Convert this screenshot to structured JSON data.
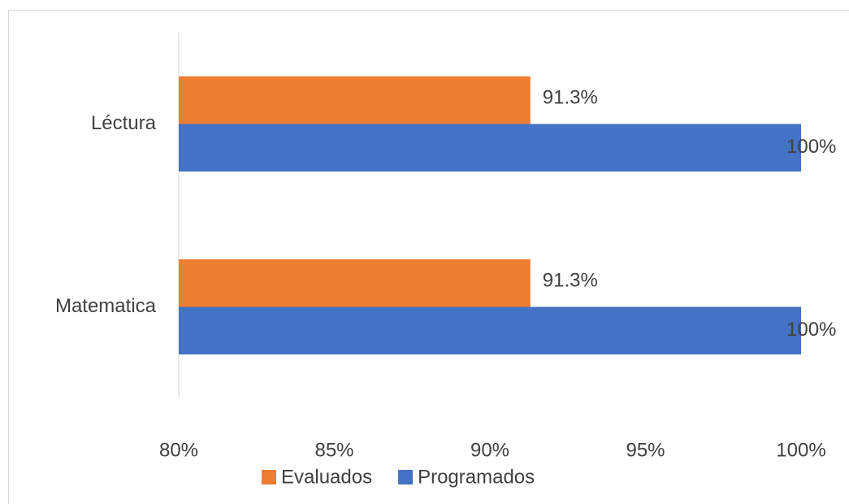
{
  "chart_data": {
    "type": "bar",
    "orientation": "horizontal",
    "categories": [
      "Léctura",
      "Matematica"
    ],
    "series": [
      {
        "name": "Evaluados",
        "color": "#ed7d31",
        "values": [
          91.3,
          91.3
        ],
        "value_labels": [
          "91.3%",
          "91.3%"
        ]
      },
      {
        "name": "Programados",
        "color": "#4472c4",
        "values": [
          100,
          100
        ],
        "value_labels": [
          "100%",
          "100%"
        ]
      }
    ],
    "xlim": [
      80,
      100
    ],
    "xticks": [
      {
        "value": 80,
        "label": "80%"
      },
      {
        "value": 85,
        "label": "85%"
      },
      {
        "value": 90,
        "label": "90%"
      },
      {
        "value": 95,
        "label": "95%"
      },
      {
        "value": 100,
        "label": "100%"
      }
    ],
    "legend": "bottom"
  }
}
